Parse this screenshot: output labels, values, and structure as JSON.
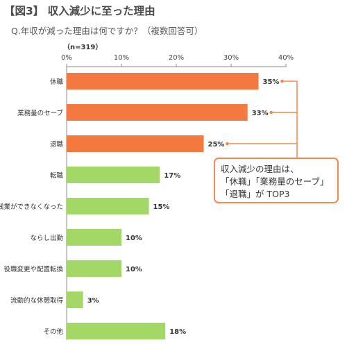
{
  "figure_title": "【図3】 収入減少に至った理由",
  "question": "Q.年収が減った理由は何ですか？（複数回答可）",
  "sample_size": "（n=319）",
  "colors": {
    "highlight": "#f47940",
    "normal": "#a3d766",
    "callout_border": "#f5874f",
    "axis": "#888888"
  },
  "callout": {
    "lines": [
      "収入減少の理由は、",
      "「休職」「業務量のセーブ」",
      "「退職」が TOP3"
    ]
  },
  "chart_data": {
    "type": "bar",
    "orientation": "horizontal",
    "categories": [
      "休職",
      "業務量のセーブ",
      "退職",
      "転職",
      "残業ができなくなった",
      "ならし出勤",
      "役職変更や配置転換",
      "流動的な休憩取得",
      "その他"
    ],
    "values": [
      35,
      33,
      25,
      17,
      15,
      10,
      10,
      3,
      18
    ],
    "value_labels": [
      "35%",
      "33%",
      "25%",
      "17%",
      "15%",
      "10%",
      "10%",
      "3%",
      "18%"
    ],
    "highlighted": [
      true,
      true,
      true,
      false,
      false,
      false,
      false,
      false,
      false
    ],
    "xlim": [
      0,
      40
    ],
    "x_ticks": [
      "0%",
      "10%",
      "20%",
      "30%",
      "40%"
    ],
    "grid": false
  }
}
